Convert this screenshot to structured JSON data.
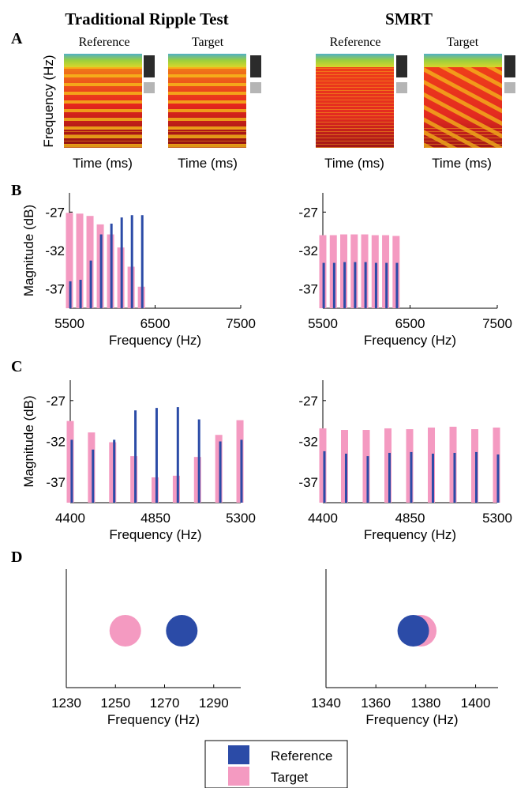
{
  "columns": {
    "left": "Traditional Ripple Test",
    "right": "SMRT"
  },
  "panel_letters": [
    "A",
    "B",
    "C",
    "D"
  ],
  "colors": {
    "reference": "#2b4ba7",
    "target": "#f49ac1",
    "spectrogram_hot": "#e8281e",
    "spectrogram_top": "#9ccf3c"
  },
  "panel_A": {
    "ylabel": "Frequency (Hz)",
    "xlabel": "Time (ms)",
    "subtitles": [
      "Reference",
      "Target",
      "Reference",
      "Target"
    ]
  },
  "chart_data": [
    {
      "type": "bar",
      "panel": "B",
      "column": "Traditional Ripple Test",
      "xlabel": "Frequency (Hz)",
      "ylabel": "Magnitude (dB)",
      "xticks": [
        "5500",
        "6500",
        "7500"
      ],
      "yticks": [
        "-27",
        "-32",
        "-37"
      ],
      "xlim": [
        5500,
        7500
      ],
      "ylim": [
        -39.5,
        -24.5
      ],
      "series": [
        {
          "key": "target",
          "x": [
            5500,
            5620,
            5740,
            5860,
            5980,
            6100,
            6220,
            6340
          ],
          "values": [
            -27.1,
            -27.2,
            -27.5,
            -28.6,
            -29.9,
            -31.6,
            -34.1,
            -36.7
          ]
        },
        {
          "key": "reference",
          "x": [
            5510,
            5630,
            5750,
            5870,
            5990,
            6110,
            6230,
            6350
          ],
          "values": [
            -36.0,
            -35.8,
            -33.3,
            -29.9,
            -28.5,
            -27.7,
            -27.4,
            -27.4
          ]
        }
      ]
    },
    {
      "type": "bar",
      "panel": "B",
      "column": "SMRT",
      "xlabel": "Frequency (Hz)",
      "ylabel": "",
      "xticks": [
        "5500",
        "6500",
        "7500"
      ],
      "yticks": [
        "-27",
        "-32",
        "-37"
      ],
      "xlim": [
        5500,
        7500
      ],
      "ylim": [
        -39.5,
        -24.5
      ],
      "series": [
        {
          "key": "target",
          "x": [
            5500,
            5620,
            5740,
            5860,
            5980,
            6100,
            6220,
            6340
          ],
          "values": [
            -30.0,
            -30.0,
            -29.9,
            -29.9,
            -29.9,
            -30.0,
            -30.0,
            -30.1
          ]
        },
        {
          "key": "reference",
          "x": [
            5510,
            5630,
            5750,
            5870,
            5990,
            6110,
            6230,
            6350
          ],
          "values": [
            -33.6,
            -33.6,
            -33.5,
            -33.5,
            -33.5,
            -33.6,
            -33.6,
            -33.6
          ]
        }
      ]
    },
    {
      "type": "bar",
      "panel": "C",
      "column": "Traditional Ripple Test",
      "xlabel": "Frequency (Hz)",
      "ylabel": "Magnitude (dB)",
      "xticks": [
        "4400",
        "4850",
        "5300"
      ],
      "yticks": [
        "-27",
        "-32",
        "-37"
      ],
      "xlim": [
        4400,
        5300
      ],
      "ylim": [
        -39.5,
        -24.5
      ],
      "series": [
        {
          "key": "target",
          "x": [
            4400,
            4512,
            4624,
            4736,
            4848,
            4960,
            5072,
            5184,
            5296
          ],
          "values": [
            -29.5,
            -30.9,
            -32.1,
            -33.8,
            -36.4,
            -36.2,
            -33.9,
            -31.2,
            -29.4
          ]
        },
        {
          "key": "reference",
          "x": [
            4408,
            4520,
            4632,
            4744,
            4856,
            4968,
            5080,
            5192,
            5304
          ],
          "values": [
            -31.8,
            -33.0,
            -31.8,
            -28.2,
            -27.9,
            -27.8,
            -29.3,
            -32.0,
            -31.8
          ]
        }
      ]
    },
    {
      "type": "bar",
      "panel": "C",
      "column": "SMRT",
      "xlabel": "Frequency (Hz)",
      "ylabel": "",
      "xticks": [
        "4400",
        "4850",
        "5300"
      ],
      "yticks": [
        "-27",
        "-32",
        "-37"
      ],
      "xlim": [
        4400,
        5300
      ],
      "ylim": [
        -39.5,
        -24.5
      ],
      "series": [
        {
          "key": "target",
          "x": [
            4400,
            4512,
            4624,
            4736,
            4848,
            4960,
            5072,
            5184,
            5296
          ],
          "values": [
            -30.4,
            -30.6,
            -30.6,
            -30.4,
            -30.5,
            -30.3,
            -30.2,
            -30.5,
            -30.3
          ]
        },
        {
          "key": "reference",
          "x": [
            4408,
            4520,
            4632,
            4744,
            4856,
            4968,
            5080,
            5192,
            5304
          ],
          "values": [
            -33.2,
            -33.5,
            -33.8,
            -33.4,
            -33.3,
            -33.5,
            -33.4,
            -33.3,
            -33.6
          ]
        }
      ]
    },
    {
      "type": "scatter",
      "panel": "D",
      "column": "Traditional Ripple Test",
      "xlabel": "Frequency (Hz)",
      "xticks": [
        "1230",
        "1250",
        "1270",
        "1290"
      ],
      "xlim": [
        1230,
        1301
      ],
      "points": [
        {
          "key": "target",
          "x": 1254
        },
        {
          "key": "reference",
          "x": 1277
        }
      ]
    },
    {
      "type": "scatter",
      "panel": "D",
      "column": "SMRT",
      "xlabel": "Frequency (Hz)",
      "xticks": [
        "1340",
        "1360",
        "1380",
        "1400"
      ],
      "xlim": [
        1340,
        1409
      ],
      "points": [
        {
          "key": "target",
          "x": 1378
        },
        {
          "key": "reference",
          "x": 1375
        }
      ]
    }
  ],
  "legend": [
    {
      "key": "reference",
      "label": "Reference"
    },
    {
      "key": "target",
      "label": "Target"
    }
  ]
}
